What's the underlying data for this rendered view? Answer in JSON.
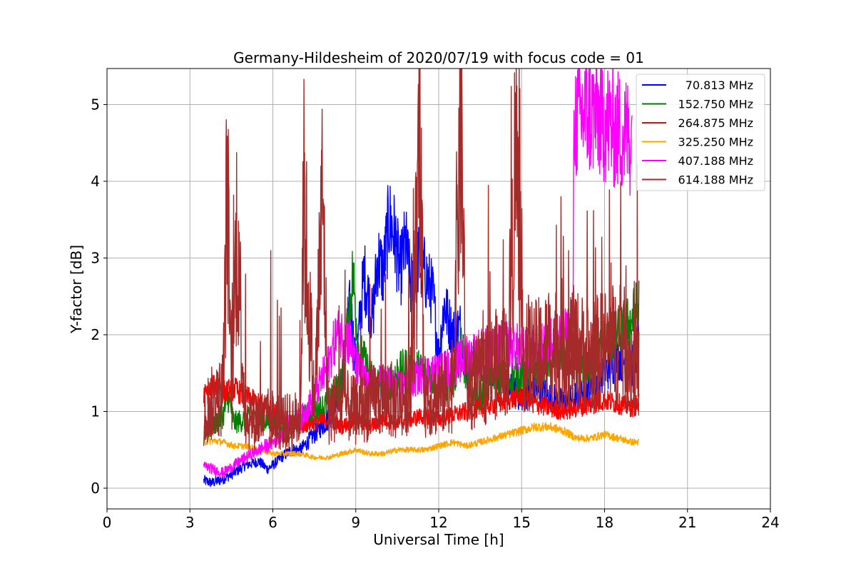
{
  "chart_data": {
    "type": "line",
    "title": "Germany-Hildesheim of 2020/07/19 with focus code = 01",
    "xlabel": "Universal Time [h]",
    "ylabel": "Y-factor [dB]",
    "xlim": [
      0,
      24
    ],
    "ylim": [
      -0.27,
      5.47
    ],
    "xticks": [
      0,
      3,
      6,
      9,
      12,
      15,
      18,
      21,
      24
    ],
    "yticks": [
      0,
      1,
      2,
      3,
      4,
      5
    ],
    "grid": true,
    "legend_position": "top-right",
    "series": [
      {
        "name": "70.813 MHz",
        "color": "#0000ff",
        "points": [
          [
            3.5,
            0.1
          ],
          [
            3.8,
            0.07
          ],
          [
            4.2,
            0.12
          ],
          [
            4.6,
            0.2
          ],
          [
            5.0,
            0.3
          ],
          [
            5.5,
            0.35
          ],
          [
            5.8,
            0.25
          ],
          [
            6.0,
            0.3
          ],
          [
            6.3,
            0.4
          ],
          [
            6.7,
            0.5
          ],
          [
            7.0,
            0.5
          ],
          [
            7.5,
            0.7
          ],
          [
            8.0,
            0.9
          ],
          [
            8.5,
            1.4
          ],
          [
            8.8,
            2.4
          ],
          [
            9.0,
            1.6
          ],
          [
            9.3,
            2.8
          ],
          [
            9.6,
            2.2
          ],
          [
            9.8,
            3.0
          ],
          [
            10.0,
            2.8
          ],
          [
            10.2,
            3.5
          ],
          [
            10.4,
            3.3
          ],
          [
            10.6,
            2.8
          ],
          [
            10.8,
            3.2
          ],
          [
            11.0,
            2.6
          ],
          [
            11.2,
            3.0
          ],
          [
            11.5,
            2.8
          ],
          [
            11.8,
            2.5
          ],
          [
            12.0,
            1.7
          ],
          [
            12.2,
            2.4
          ],
          [
            12.5,
            2.0
          ],
          [
            12.8,
            2.1
          ],
          [
            13.0,
            1.5
          ],
          [
            13.5,
            1.7
          ],
          [
            14.0,
            1.6
          ],
          [
            14.5,
            1.3
          ],
          [
            15.0,
            1.2
          ],
          [
            15.5,
            1.3
          ],
          [
            16.0,
            1.2
          ],
          [
            16.5,
            1.1
          ],
          [
            17.0,
            1.2
          ],
          [
            17.5,
            1.3
          ],
          [
            18.0,
            1.5
          ],
          [
            18.5,
            1.7
          ],
          [
            19.0,
            1.6
          ],
          [
            19.25,
            1.9
          ]
        ]
      },
      {
        "name": "152.750 MHz",
        "color": "#008000",
        "points": [
          [
            3.5,
            0.7
          ],
          [
            3.8,
            0.8
          ],
          [
            4.2,
            0.95
          ],
          [
            4.4,
            1.2
          ],
          [
            4.6,
            0.85
          ],
          [
            5.0,
            0.9
          ],
          [
            5.5,
            0.9
          ],
          [
            6.0,
            0.85
          ],
          [
            6.5,
            0.7
          ],
          [
            7.0,
            0.9
          ],
          [
            7.5,
            1.0
          ],
          [
            8.0,
            1.1
          ],
          [
            8.5,
            1.4
          ],
          [
            8.9,
            2.8
          ],
          [
            9.1,
            1.8
          ],
          [
            9.5,
            1.5
          ],
          [
            10.0,
            1.3
          ],
          [
            10.5,
            1.5
          ],
          [
            11.0,
            1.6
          ],
          [
            11.5,
            1.5
          ],
          [
            12.0,
            1.4
          ],
          [
            12.5,
            1.3
          ],
          [
            12.8,
            1.9
          ],
          [
            13.0,
            1.4
          ],
          [
            13.5,
            1.2
          ],
          [
            14.0,
            1.5
          ],
          [
            14.5,
            1.4
          ],
          [
            15.0,
            1.5
          ],
          [
            15.5,
            1.6
          ],
          [
            16.0,
            1.7
          ],
          [
            16.5,
            1.8
          ],
          [
            17.0,
            1.7
          ],
          [
            17.5,
            1.6
          ],
          [
            18.0,
            1.9
          ],
          [
            18.5,
            2.0
          ],
          [
            19.0,
            2.2
          ],
          [
            19.25,
            2.4
          ]
        ]
      },
      {
        "name": "264.875 MHz",
        "color": "#ff0000",
        "points": [
          [
            3.5,
            1.2
          ],
          [
            3.8,
            1.3
          ],
          [
            4.0,
            1.35
          ],
          [
            4.3,
            1.25
          ],
          [
            4.6,
            1.3
          ],
          [
            5.0,
            1.2
          ],
          [
            5.5,
            1.1
          ],
          [
            6.0,
            1.0
          ],
          [
            6.5,
            0.9
          ],
          [
            7.0,
            0.8
          ],
          [
            7.5,
            0.85
          ],
          [
            8.0,
            0.9
          ],
          [
            8.5,
            0.8
          ],
          [
            9.0,
            0.9
          ],
          [
            9.5,
            0.8
          ],
          [
            10.0,
            0.9
          ],
          [
            10.5,
            0.85
          ],
          [
            11.0,
            0.9
          ],
          [
            11.5,
            0.95
          ],
          [
            12.0,
            0.9
          ],
          [
            12.5,
            0.95
          ],
          [
            13.0,
            1.0
          ],
          [
            13.5,
            1.05
          ],
          [
            14.0,
            1.1
          ],
          [
            14.5,
            1.15
          ],
          [
            15.0,
            1.2
          ],
          [
            15.5,
            1.1
          ],
          [
            16.0,
            1.05
          ],
          [
            16.5,
            1.0
          ],
          [
            17.0,
            1.05
          ],
          [
            17.5,
            1.1
          ],
          [
            18.0,
            1.15
          ],
          [
            18.5,
            1.1
          ],
          [
            19.0,
            1.05
          ],
          [
            19.25,
            1.1
          ]
        ]
      },
      {
        "name": "325.250 MHz",
        "color": "#ffa500",
        "points": [
          [
            3.5,
            0.6
          ],
          [
            3.8,
            0.62
          ],
          [
            4.2,
            0.6
          ],
          [
            4.6,
            0.55
          ],
          [
            5.0,
            0.55
          ],
          [
            5.5,
            0.5
          ],
          [
            6.0,
            0.45
          ],
          [
            6.5,
            0.45
          ],
          [
            7.0,
            0.45
          ],
          [
            7.5,
            0.4
          ],
          [
            8.0,
            0.4
          ],
          [
            8.5,
            0.45
          ],
          [
            9.0,
            0.5
          ],
          [
            9.5,
            0.45
          ],
          [
            10.0,
            0.45
          ],
          [
            10.5,
            0.5
          ],
          [
            11.0,
            0.5
          ],
          [
            11.5,
            0.5
          ],
          [
            12.0,
            0.55
          ],
          [
            12.5,
            0.6
          ],
          [
            13.0,
            0.55
          ],
          [
            13.5,
            0.6
          ],
          [
            14.0,
            0.65
          ],
          [
            14.5,
            0.7
          ],
          [
            15.0,
            0.75
          ],
          [
            15.5,
            0.8
          ],
          [
            16.0,
            0.8
          ],
          [
            16.5,
            0.75
          ],
          [
            17.0,
            0.65
          ],
          [
            17.5,
            0.65
          ],
          [
            18.0,
            0.7
          ],
          [
            18.5,
            0.65
          ],
          [
            19.0,
            0.6
          ],
          [
            19.25,
            0.6
          ]
        ]
      },
      {
        "name": "407.188 MHz",
        "color": "#ff00ff",
        "points": [
          [
            3.5,
            0.3
          ],
          [
            3.8,
            0.25
          ],
          [
            4.2,
            0.2
          ],
          [
            4.6,
            0.3
          ],
          [
            5.0,
            0.4
          ],
          [
            5.5,
            0.5
          ],
          [
            6.0,
            0.6
          ],
          [
            6.5,
            0.8
          ],
          [
            7.0,
            0.9
          ],
          [
            7.5,
            1.2
          ],
          [
            8.0,
            1.6
          ],
          [
            8.3,
            2.0
          ],
          [
            8.5,
            2.0
          ],
          [
            8.8,
            1.9
          ],
          [
            9.0,
            1.6
          ],
          [
            9.5,
            1.3
          ],
          [
            10.0,
            1.4
          ],
          [
            10.5,
            1.3
          ],
          [
            11.0,
            1.4
          ],
          [
            11.5,
            1.5
          ],
          [
            12.0,
            1.5
          ],
          [
            12.5,
            1.6
          ],
          [
            13.0,
            1.7
          ],
          [
            13.5,
            1.8
          ],
          [
            14.0,
            1.8
          ],
          [
            14.5,
            1.9
          ],
          [
            15.0,
            1.8
          ],
          [
            15.5,
            1.8
          ],
          [
            16.0,
            1.9
          ],
          [
            16.5,
            2.0
          ],
          [
            16.85,
            2.0
          ],
          [
            16.9,
            4.8
          ],
          [
            17.3,
            4.9
          ],
          [
            17.8,
            4.85
          ],
          [
            18.3,
            4.7
          ],
          [
            18.8,
            4.6
          ],
          [
            19.0,
            4.55
          ]
        ]
      },
      {
        "name": "614.188 MHz",
        "color": "#a52a2a",
        "points": [
          [
            3.5,
            1.0
          ],
          [
            3.8,
            1.1
          ],
          [
            4.2,
            1.2
          ],
          [
            4.35,
            4.1
          ],
          [
            4.5,
            1.0
          ],
          [
            4.7,
            3.5
          ],
          [
            5.0,
            0.9
          ],
          [
            5.5,
            0.9
          ],
          [
            6.0,
            0.9
          ],
          [
            6.5,
            0.85
          ],
          [
            7.0,
            0.9
          ],
          [
            7.1,
            3.9
          ],
          [
            7.5,
            1.0
          ],
          [
            7.8,
            3.8
          ],
          [
            8.0,
            1.0
          ],
          [
            8.5,
            1.1
          ],
          [
            9.0,
            1.0
          ],
          [
            9.5,
            1.1
          ],
          [
            10.0,
            1.2
          ],
          [
            10.5,
            1.1
          ],
          [
            11.0,
            1.3
          ],
          [
            11.3,
            4.2
          ],
          [
            11.5,
            1.2
          ],
          [
            12.0,
            1.2
          ],
          [
            12.5,
            1.3
          ],
          [
            12.8,
            4.9
          ],
          [
            13.0,
            1.3
          ],
          [
            13.5,
            1.4
          ],
          [
            14.0,
            1.6
          ],
          [
            14.5,
            1.7
          ],
          [
            14.8,
            4.5
          ],
          [
            15.0,
            1.8
          ],
          [
            15.5,
            1.7
          ],
          [
            16.0,
            1.8
          ],
          [
            16.5,
            1.9
          ],
          [
            17.0,
            1.8
          ],
          [
            17.5,
            1.7
          ],
          [
            18.0,
            1.8
          ],
          [
            18.5,
            1.9
          ],
          [
            19.0,
            1.7
          ],
          [
            19.25,
            1.6
          ]
        ]
      }
    ]
  }
}
